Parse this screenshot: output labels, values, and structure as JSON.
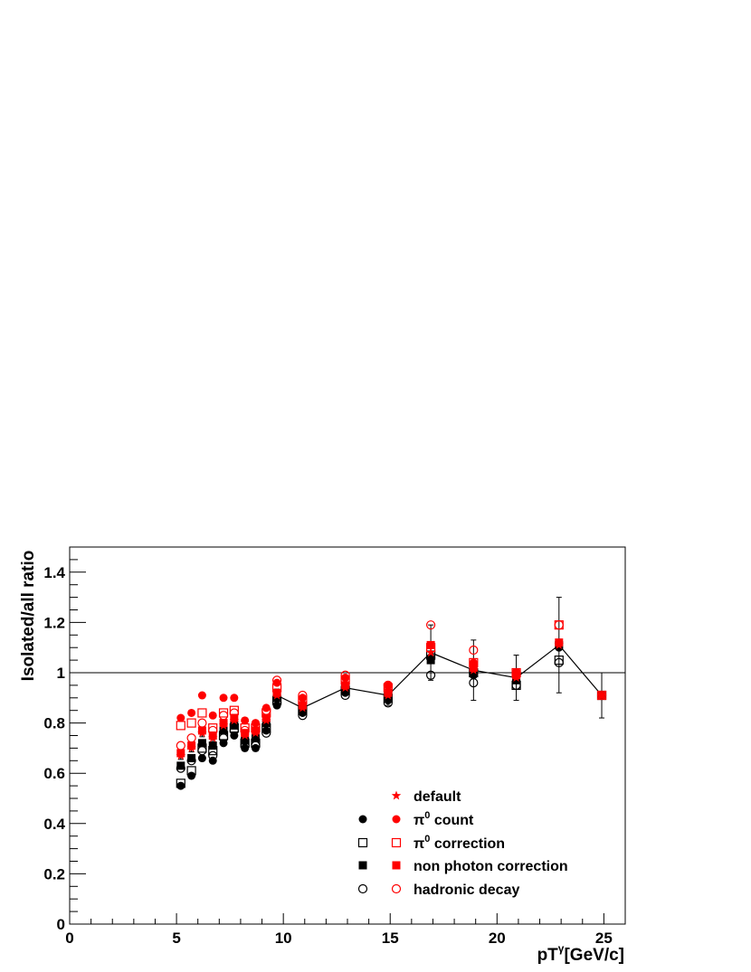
{
  "chart_data": {
    "type": "scatter",
    "title": "",
    "xlabel": "pT",
    "xlabel_sup": "γ",
    "xlabel_unit": "[GeV/c]",
    "ylabel": "Isolated/all ratio",
    "xlim": [
      0,
      26
    ],
    "ylim": [
      0,
      1.5
    ],
    "xticks": [
      "0",
      "5",
      "10",
      "15",
      "20",
      "25"
    ],
    "yticks": [
      "0",
      "0.2",
      "0.4",
      "0.6",
      "0.8",
      "1",
      "1.2",
      "1.4"
    ],
    "reference_line": 1,
    "colors": {
      "red": "#ff0000",
      "black": "#000000"
    },
    "x": [
      5.2,
      5.7,
      6.2,
      6.7,
      7.2,
      7.7,
      8.2,
      8.7,
      9.2,
      9.7,
      10.9,
      12.9,
      14.9,
      16.9,
      18.9,
      20.9,
      22.9,
      24.9
    ],
    "default": {
      "y": [
        0.67,
        0.7,
        0.76,
        0.74,
        0.79,
        0.81,
        0.75,
        0.76,
        0.81,
        0.91,
        0.86,
        0.94,
        0.91,
        1.08,
        1.01,
        0.98,
        1.11,
        0.91
      ],
      "yerr": [
        0.015,
        0.015,
        0.015,
        0.015,
        0.015,
        0.015,
        0.015,
        0.015,
        0.02,
        0.025,
        0.025,
        0.02,
        0.04,
        0.11,
        0.12,
        0.09,
        0.19,
        0.09
      ]
    },
    "series": [
      {
        "name": "π0 count",
        "marker": "filled-circle",
        "color": "black",
        "y": [
          0.55,
          0.59,
          0.66,
          0.65,
          0.72,
          0.75,
          0.7,
          0.7,
          0.77,
          0.87,
          0.84,
          0.92,
          0.89,
          1.06,
          0.99,
          0.97,
          1.1,
          0.91
        ]
      },
      {
        "name": "π0 count",
        "marker": "filled-circle",
        "color": "red",
        "y": [
          0.82,
          0.84,
          0.91,
          0.83,
          0.9,
          0.9,
          0.81,
          0.8,
          0.86,
          0.96,
          0.9,
          0.98,
          0.95,
          1.11,
          1.04,
          1.0,
          1.12,
          0.91
        ]
      },
      {
        "name": "π0 correction",
        "marker": "open-square",
        "color": "black",
        "y": [
          0.56,
          0.61,
          0.7,
          0.69,
          0.75,
          0.78,
          0.72,
          0.72,
          0.78,
          0.89,
          0.85,
          0.93,
          0.9,
          1.07,
          1.0,
          0.95,
          1.05,
          0.91
        ]
      },
      {
        "name": "π0 correction",
        "marker": "open-square",
        "color": "red",
        "y": [
          0.79,
          0.8,
          0.84,
          0.78,
          0.84,
          0.85,
          0.78,
          0.78,
          0.84,
          0.94,
          0.89,
          0.97,
          0.94,
          1.1,
          1.04,
          1.0,
          1.19,
          0.91
        ]
      },
      {
        "name": "non photon correction",
        "marker": "filled-square",
        "color": "black",
        "y": [
          0.63,
          0.66,
          0.72,
          0.71,
          0.77,
          0.79,
          0.73,
          0.74,
          0.8,
          0.9,
          0.86,
          0.94,
          0.91,
          1.05,
          1.0,
          0.97,
          1.11,
          0.91
        ]
      },
      {
        "name": "non photon correction",
        "marker": "filled-square",
        "color": "red",
        "y": [
          0.68,
          0.71,
          0.77,
          0.75,
          0.8,
          0.82,
          0.76,
          0.77,
          0.82,
          0.92,
          0.87,
          0.95,
          0.92,
          1.11,
          1.02,
          0.99,
          1.12,
          0.91
        ]
      },
      {
        "name": "hadronic decay",
        "marker": "open-circle",
        "color": "black",
        "y": [
          0.62,
          0.65,
          0.69,
          0.67,
          0.74,
          0.77,
          0.71,
          0.71,
          0.76,
          0.88,
          0.83,
          0.91,
          0.88,
          0.99,
          0.96,
          0.95,
          1.04,
          0.91
        ]
      },
      {
        "name": "hadronic decay",
        "marker": "open-circle",
        "color": "red",
        "y": [
          0.71,
          0.74,
          0.8,
          0.77,
          0.83,
          0.84,
          0.77,
          0.79,
          0.85,
          0.97,
          0.91,
          0.99,
          0.95,
          1.19,
          1.09,
          1.0,
          1.19,
          0.91
        ]
      }
    ],
    "legend": {
      "placement": "bottom-right",
      "entries": [
        {
          "label": "default",
          "markers": [
            "red-star"
          ]
        },
        {
          "label": "π",
          "sup": "0",
          "suffix": " count",
          "markers": [
            "black-filled-circle",
            "red-filled-circle"
          ]
        },
        {
          "label": "π",
          "sup": "0",
          "suffix": " correction",
          "markers": [
            "black-open-square",
            "red-open-square"
          ]
        },
        {
          "label": "non photon correction",
          "markers": [
            "black-filled-square",
            "red-filled-square"
          ]
        },
        {
          "label": "hadronic decay",
          "markers": [
            "black-open-circle",
            "red-open-circle"
          ]
        }
      ]
    }
  }
}
